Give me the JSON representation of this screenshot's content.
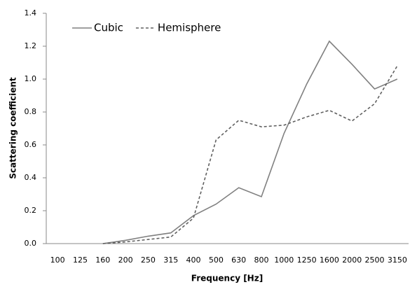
{
  "chart_data": {
    "type": "line",
    "x_label": "Frequency [Hz]",
    "y_label": "Scattering coefficient",
    "categories": [
      "100",
      "125",
      "160",
      "200",
      "250",
      "315",
      "400",
      "500",
      "630",
      "800",
      "1000",
      "1250",
      "1600",
      "2000",
      "2500",
      "3150"
    ],
    "series": [
      {
        "name": "Cubic",
        "color": "#808080",
        "dash": "solid",
        "values": [
          null,
          null,
          0.0,
          0.02,
          0.045,
          0.065,
          0.17,
          0.24,
          0.34,
          0.285,
          0.67,
          0.97,
          1.23,
          1.09,
          0.94,
          1.0
        ]
      },
      {
        "name": "Hemisphere",
        "color": "#606060",
        "dash": "dashed",
        "values": [
          null,
          null,
          0.0,
          0.01,
          0.025,
          0.04,
          0.155,
          0.63,
          0.75,
          0.71,
          0.72,
          0.77,
          0.81,
          0.745,
          0.85,
          1.08
        ]
      }
    ],
    "ylim": [
      0,
      1.4
    ],
    "yticks": [
      {
        "value": 0,
        "label": "0.0"
      },
      {
        "value": 0.2,
        "label": "0.2"
      },
      {
        "value": 0.4,
        "label": "0.4"
      },
      {
        "value": 0.6,
        "label": "0.6"
      },
      {
        "value": 0.8,
        "label": "0.8"
      },
      {
        "value": 1,
        "label": "1.0"
      },
      {
        "value": 1.2,
        "label": "1.2"
      },
      {
        "value": 1.4,
        "label": "1.4"
      }
    ],
    "grid": false,
    "legend": "top-left"
  }
}
